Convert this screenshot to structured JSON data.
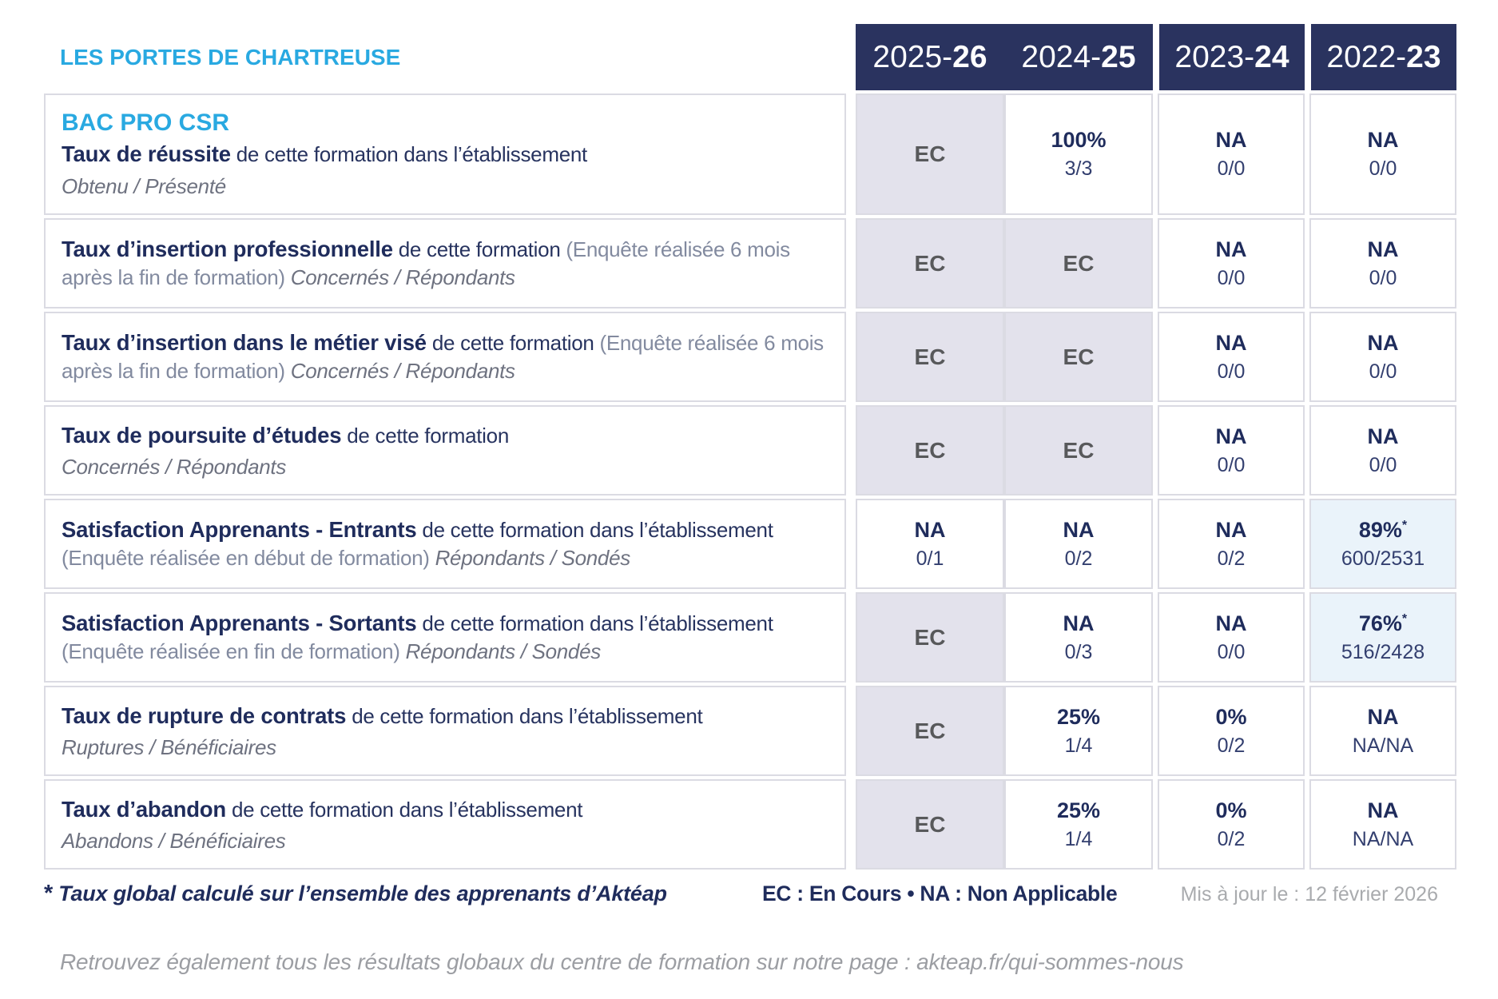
{
  "brand": {
    "title": "LES PORTES DE CHARTREUSE"
  },
  "program": "BAC PRO CSR",
  "years": [
    {
      "pre": "2025-",
      "bold": "26"
    },
    {
      "pre": "2024-",
      "bold": "25"
    },
    {
      "pre": "2023-",
      "bold": "24"
    },
    {
      "pre": "2022-",
      "bold": "23"
    }
  ],
  "rows": [
    {
      "title": "Taux de réussite",
      "desc": "de cette formation dans l’établissement",
      "paren": "",
      "sub": "Obtenu / Présenté",
      "sub_inline": false,
      "cells": [
        {
          "v": "EC",
          "type": "ec"
        },
        {
          "v": "100%",
          "frac": "3/3",
          "type": "plain"
        },
        {
          "v": "NA",
          "frac": "0/0",
          "type": "plain"
        },
        {
          "v": "NA",
          "frac": "0/0",
          "type": "plain"
        }
      ]
    },
    {
      "title": "Taux d’insertion professionnelle",
      "desc": "de cette formation",
      "paren": "(Enquête réalisée 6 mois après la fin de formation)",
      "sub": "Concernés / Répondants",
      "sub_inline": true,
      "cells": [
        {
          "v": "EC",
          "type": "ec"
        },
        {
          "v": "EC",
          "type": "ec"
        },
        {
          "v": "NA",
          "frac": "0/0",
          "type": "plain"
        },
        {
          "v": "NA",
          "frac": "0/0",
          "type": "plain"
        }
      ]
    },
    {
      "title": "Taux d’insertion dans le métier visé",
      "desc": "de cette formation",
      "paren": "(Enquête réalisée 6 mois après la fin de formation)",
      "sub": "Concernés / Répondants",
      "sub_inline": true,
      "cells": [
        {
          "v": "EC",
          "type": "ec"
        },
        {
          "v": "EC",
          "type": "ec"
        },
        {
          "v": "NA",
          "frac": "0/0",
          "type": "plain"
        },
        {
          "v": "NA",
          "frac": "0/0",
          "type": "plain"
        }
      ]
    },
    {
      "title": "Taux de poursuite d’études",
      "desc": "de cette formation",
      "paren": "",
      "sub": "Concernés / Répondants",
      "sub_inline": false,
      "cells": [
        {
          "v": "EC",
          "type": "ec"
        },
        {
          "v": "EC",
          "type": "ec"
        },
        {
          "v": "NA",
          "frac": "0/0",
          "type": "plain"
        },
        {
          "v": "NA",
          "frac": "0/0",
          "type": "plain"
        }
      ]
    },
    {
      "title": "Satisfaction Apprenants - Entrants",
      "desc": "de cette formation dans l’établissement",
      "paren": "(Enquête réalisée en début de formation)",
      "sub": "Répondants / Sondés",
      "sub_inline": true,
      "cells": [
        {
          "v": "NA",
          "frac": "0/1",
          "type": "plain"
        },
        {
          "v": "NA",
          "frac": "0/2",
          "type": "plain"
        },
        {
          "v": "NA",
          "frac": "0/2",
          "type": "plain"
        },
        {
          "v": "89%",
          "star": true,
          "frac": "600/2531",
          "type": "hl"
        }
      ]
    },
    {
      "title": "Satisfaction Apprenants - Sortants",
      "desc": "de cette formation dans l’établissement",
      "paren": "(Enquête réalisée en fin de formation)",
      "sub": "Répondants / Sondés",
      "sub_inline": true,
      "cells": [
        {
          "v": "EC",
          "type": "ec"
        },
        {
          "v": "NA",
          "frac": "0/3",
          "type": "plain"
        },
        {
          "v": "NA",
          "frac": "0/0",
          "type": "plain"
        },
        {
          "v": "76%",
          "star": true,
          "frac": "516/2428",
          "type": "hl"
        }
      ]
    },
    {
      "title": "Taux de rupture de contrats",
      "desc": "de cette formation dans l’établissement",
      "paren": "",
      "sub": "Ruptures / Bénéficiaires",
      "sub_inline": false,
      "cells": [
        {
          "v": "EC",
          "type": "ec"
        },
        {
          "v": "25%",
          "frac": "1/4",
          "type": "plain"
        },
        {
          "v": "0%",
          "frac": "0/2",
          "type": "plain"
        },
        {
          "v": "NA",
          "frac": "NA/NA",
          "type": "plain"
        }
      ]
    },
    {
      "title": "Taux d’abandon",
      "desc": "de cette formation dans l’établissement",
      "paren": "",
      "sub": "Abandons / Bénéficiaires",
      "sub_inline": false,
      "cells": [
        {
          "v": "EC",
          "type": "ec"
        },
        {
          "v": "25%",
          "frac": "1/4",
          "type": "plain"
        },
        {
          "v": "0%",
          "frac": "0/2",
          "type": "plain"
        },
        {
          "v": "NA",
          "frac": "NA/NA",
          "type": "plain"
        }
      ]
    }
  ],
  "footnote": {
    "star": "*",
    "text": "Taux global calculé sur l’ensemble des apprenants d’Aktéap",
    "legend": "EC : En Cours  •  NA : Non Applicable",
    "updated": "Mis à jour le : 12 février 2026"
  },
  "bottom_note": "Retrouvez également tous les résultats globaux du centre de formation sur notre page : akteap.fr/qui-sommes-nous",
  "colors": {
    "accent_blue": "#29A9E1",
    "navy": "#2A335F",
    "value_navy": "#1F2C5C",
    "ec_gray": "#58595B",
    "ec_cell_bg": "#E3E2EC",
    "highlight_cell_bg": "#EAF3FA",
    "cell_border": "#DBDBE3",
    "muted_gray": "#A9ABAE"
  }
}
